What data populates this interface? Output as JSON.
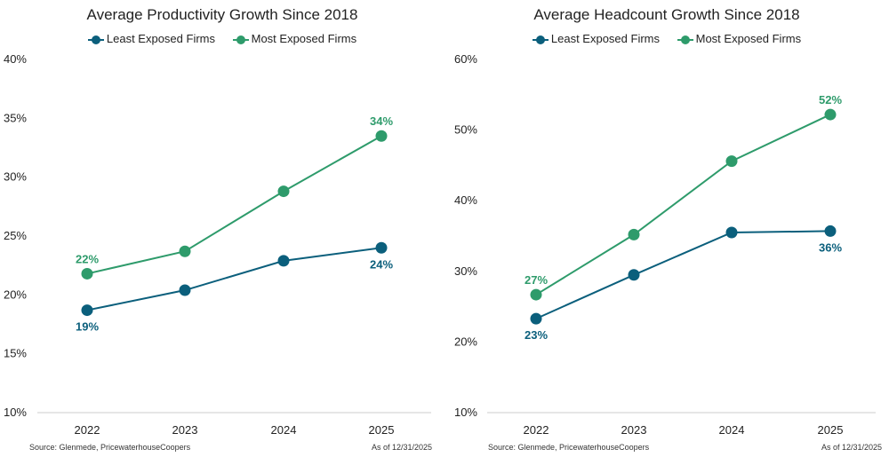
{
  "colors": {
    "least": "#0b5f7c",
    "most": "#2e9b6b",
    "axis": "#cccccc"
  },
  "chart_data": [
    {
      "type": "line",
      "title": "Average Productivity Growth Since 2018",
      "categories": [
        "2022",
        "2023",
        "2024",
        "2025"
      ],
      "series": [
        {
          "name": "Least Exposed Firms",
          "values": [
            18.7,
            20.4,
            22.9,
            24.0
          ],
          "labels": [
            "19%",
            "",
            "",
            "24%"
          ]
        },
        {
          "name": "Most Exposed Firms",
          "values": [
            21.8,
            23.7,
            28.8,
            33.5
          ],
          "labels": [
            "22%",
            "",
            "",
            "34%"
          ]
        }
      ],
      "ylim": [
        10,
        40
      ],
      "yticks": [
        "10%",
        "15%",
        "20%",
        "25%",
        "30%",
        "35%",
        "40%"
      ],
      "source": "Source: Glenmede, PricewaterhouseCoopers",
      "as_of": "As of 12/31/2025"
    },
    {
      "type": "line",
      "title": "Average Headcount Growth Since 2018",
      "categories": [
        "2022",
        "2023",
        "2024",
        "2025"
      ],
      "series": [
        {
          "name": "Least Exposed Firms",
          "values": [
            23.3,
            29.5,
            35.5,
            35.7
          ],
          "labels": [
            "23%",
            "",
            "",
            "36%"
          ]
        },
        {
          "name": "Most Exposed Firms",
          "values": [
            26.7,
            35.2,
            45.6,
            52.2
          ],
          "labels": [
            "27%",
            "",
            "",
            "52%"
          ]
        }
      ],
      "ylim": [
        10,
        60
      ],
      "yticks": [
        "10%",
        "20%",
        "30%",
        "40%",
        "50%",
        "60%"
      ],
      "source": "Source: Glenmede, PricewaterhouseCoopers",
      "as_of": "As of 12/31/2025"
    }
  ]
}
